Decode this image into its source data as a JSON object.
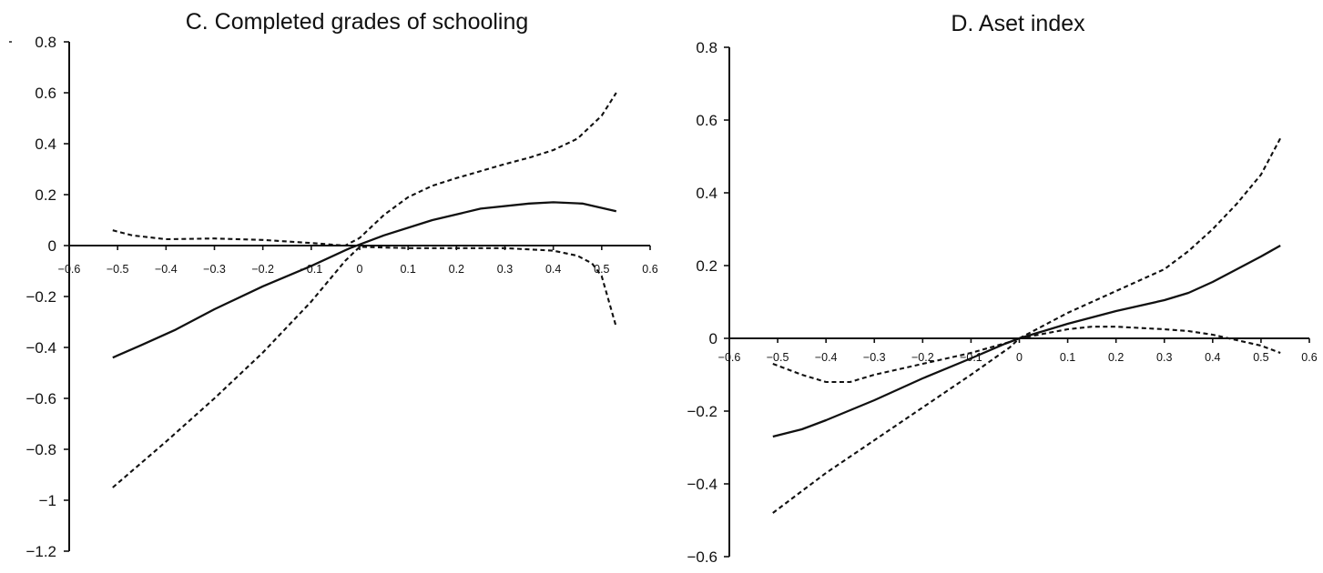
{
  "chart_data": [
    {
      "type": "line",
      "title": "C.  Completed grades of schooling",
      "xlabel": "",
      "ylabel": "",
      "xlim": [
        -0.6,
        0.6
      ],
      "ylim": [
        -1.2,
        0.8
      ],
      "x_ticks": [
        "−0.6",
        "−0.5",
        "−0.4",
        "−0.3",
        "−0.2",
        "−0.1",
        "0",
        "0.1",
        "0.2",
        "0.3",
        "0.4",
        "0.5",
        "0.6"
      ],
      "y_ticks": [
        "0.8",
        "0.6",
        "0.4",
        "0.2",
        "0",
        "−0.2",
        "−0.4",
        "−0.6",
        "−0.8",
        "−1",
        "−1.2"
      ],
      "grid": false,
      "legend": "none",
      "series": [
        {
          "style": "solid",
          "x": [
            -0.51,
            -0.45,
            -0.38,
            -0.3,
            -0.2,
            -0.1,
            -0.02,
            0.05,
            0.15,
            0.25,
            0.35,
            0.4,
            0.46,
            0.53
          ],
          "y": [
            -0.44,
            -0.39,
            -0.33,
            -0.25,
            -0.16,
            -0.08,
            -0.01,
            0.04,
            0.1,
            0.145,
            0.165,
            0.17,
            0.165,
            0.135
          ]
        },
        {
          "style": "dashed",
          "x": [
            -0.51,
            -0.47,
            -0.4,
            -0.3,
            -0.2,
            -0.1,
            -0.03,
            0.0,
            0.05,
            0.1,
            0.15,
            0.2,
            0.3,
            0.35,
            0.4,
            0.45,
            0.5,
            0.53
          ],
          "y": [
            0.06,
            0.04,
            0.025,
            0.028,
            0.022,
            0.01,
            0.0,
            0.03,
            0.12,
            0.19,
            0.235,
            0.265,
            0.32,
            0.345,
            0.375,
            0.42,
            0.51,
            0.6
          ]
        },
        {
          "style": "dashed",
          "x": [
            -0.51,
            -0.4,
            -0.3,
            -0.2,
            -0.1,
            -0.03,
            0.0,
            0.1,
            0.2,
            0.3,
            0.35,
            0.4,
            0.45,
            0.48,
            0.5,
            0.53
          ],
          "y": [
            -0.95,
            -0.77,
            -0.6,
            -0.42,
            -0.22,
            -0.06,
            -0.005,
            -0.01,
            -0.01,
            -0.01,
            -0.015,
            -0.02,
            -0.04,
            -0.07,
            -0.12,
            -0.32
          ]
        }
      ]
    },
    {
      "type": "line",
      "title": "D. Aset index",
      "xlabel": "",
      "ylabel": "",
      "xlim": [
        -0.6,
        0.6
      ],
      "ylim": [
        -0.6,
        0.8
      ],
      "x_ticks": [
        "−0.6",
        "−0.5",
        "−0.4",
        "−0.3",
        "−0.2",
        "−0.1",
        "0",
        "0.1",
        "0.2",
        "0.3",
        "0.4",
        "0.5",
        "0.6"
      ],
      "y_ticks": [
        "0.8",
        "0.6",
        "0.4",
        "0.2",
        "0",
        "−0.2",
        "−0.4",
        "−0.6"
      ],
      "grid": false,
      "legend": "none",
      "series": [
        {
          "style": "solid",
          "x": [
            -0.51,
            -0.45,
            -0.4,
            -0.3,
            -0.2,
            -0.1,
            -0.03,
            0.0,
            0.1,
            0.2,
            0.3,
            0.35,
            0.4,
            0.45,
            0.5,
            0.54
          ],
          "y": [
            -0.27,
            -0.25,
            -0.225,
            -0.17,
            -0.11,
            -0.055,
            -0.015,
            0.0,
            0.04,
            0.075,
            0.105,
            0.125,
            0.155,
            0.19,
            0.225,
            0.255
          ]
        },
        {
          "style": "dashed",
          "x": [
            -0.51,
            -0.45,
            -0.4,
            -0.35,
            -0.3,
            -0.2,
            -0.1,
            -0.02,
            0.0,
            0.1,
            0.2,
            0.3,
            0.35,
            0.4,
            0.45,
            0.5,
            0.54
          ],
          "y": [
            -0.07,
            -0.1,
            -0.12,
            -0.12,
            -0.1,
            -0.07,
            -0.04,
            -0.01,
            0.0,
            0.07,
            0.13,
            0.19,
            0.24,
            0.3,
            0.37,
            0.45,
            0.55
          ]
        },
        {
          "style": "dashed",
          "x": [
            -0.51,
            -0.45,
            -0.4,
            -0.3,
            -0.2,
            -0.1,
            -0.02,
            0.0,
            0.1,
            0.15,
            0.2,
            0.3,
            0.35,
            0.4,
            0.45,
            0.5,
            0.54
          ],
          "y": [
            -0.48,
            -0.42,
            -0.37,
            -0.28,
            -0.19,
            -0.1,
            -0.025,
            0.0,
            0.025,
            0.032,
            0.032,
            0.025,
            0.02,
            0.01,
            -0.005,
            -0.02,
            -0.04
          ]
        }
      ]
    }
  ]
}
